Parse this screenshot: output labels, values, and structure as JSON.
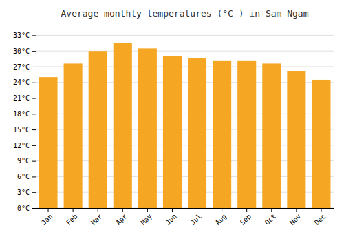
{
  "chart_data": {
    "type": "bar",
    "title": "Average monthly temperatures (°C ) in Sam Ngam",
    "categories": [
      "Jan",
      "Feb",
      "Mar",
      "Apr",
      "May",
      "Jun",
      "Jul",
      "Aug",
      "Sep",
      "Oct",
      "Nov",
      "Dec"
    ],
    "values": [
      25.0,
      27.6,
      30.0,
      31.5,
      30.5,
      29.0,
      28.7,
      28.2,
      28.2,
      27.6,
      26.2,
      24.5
    ],
    "color": "#F5A623",
    "ylim": [
      0,
      34.5
    ],
    "yticks": [
      {
        "value": 0,
        "label": "0°C"
      },
      {
        "value": 3,
        "label": "3°C"
      },
      {
        "value": 6,
        "label": "6°C"
      },
      {
        "value": 9,
        "label": "9°C"
      },
      {
        "value": 12,
        "label": "12°C"
      },
      {
        "value": 15,
        "label": "15°C"
      },
      {
        "value": 18,
        "label": "18°C"
      },
      {
        "value": 21,
        "label": "21°C"
      },
      {
        "value": 24,
        "label": "24°C"
      },
      {
        "value": 27,
        "label": "27°C"
      },
      {
        "value": 30,
        "label": "30°C"
      },
      {
        "value": 33,
        "label": "33°C"
      }
    ],
    "grid": true
  }
}
